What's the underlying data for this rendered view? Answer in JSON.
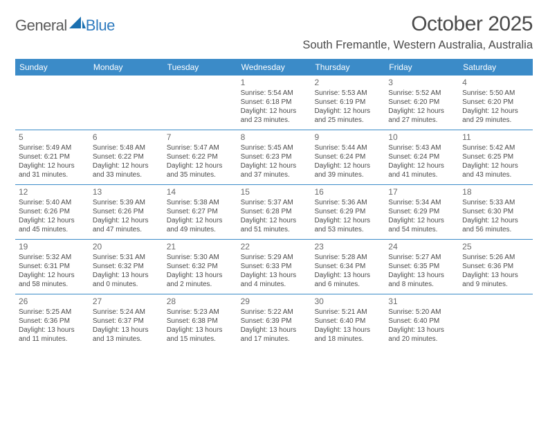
{
  "logo": {
    "general": "General",
    "blue": "Blue"
  },
  "title": "October 2025",
  "location": "South Fremantle, Western Australia, Australia",
  "colors": {
    "header_bg": "#3b8bc8",
    "header_text": "#ffffff",
    "page_bg": "#ffffff",
    "text": "#4a4a4a",
    "daynum": "#6a6a6a",
    "row_border": "#3b8bc8"
  },
  "typography": {
    "title_fontsize": 30,
    "location_fontsize": 16.5,
    "header_fontsize": 12,
    "daynum_fontsize": 12,
    "cell_fontsize": 10,
    "logo_fontsize": 22
  },
  "layout": {
    "columns": 7,
    "rows": 5,
    "cell_min_height": 78
  },
  "dayHeaders": [
    "Sunday",
    "Monday",
    "Tuesday",
    "Wednesday",
    "Thursday",
    "Friday",
    "Saturday"
  ],
  "weeks": [
    [
      {
        "day": "",
        "lines": []
      },
      {
        "day": "",
        "lines": []
      },
      {
        "day": "",
        "lines": []
      },
      {
        "day": "1",
        "lines": [
          "Sunrise: 5:54 AM",
          "Sunset: 6:18 PM",
          "Daylight: 12 hours",
          "and 23 minutes."
        ]
      },
      {
        "day": "2",
        "lines": [
          "Sunrise: 5:53 AM",
          "Sunset: 6:19 PM",
          "Daylight: 12 hours",
          "and 25 minutes."
        ]
      },
      {
        "day": "3",
        "lines": [
          "Sunrise: 5:52 AM",
          "Sunset: 6:20 PM",
          "Daylight: 12 hours",
          "and 27 minutes."
        ]
      },
      {
        "day": "4",
        "lines": [
          "Sunrise: 5:50 AM",
          "Sunset: 6:20 PM",
          "Daylight: 12 hours",
          "and 29 minutes."
        ]
      }
    ],
    [
      {
        "day": "5",
        "lines": [
          "Sunrise: 5:49 AM",
          "Sunset: 6:21 PM",
          "Daylight: 12 hours",
          "and 31 minutes."
        ]
      },
      {
        "day": "6",
        "lines": [
          "Sunrise: 5:48 AM",
          "Sunset: 6:22 PM",
          "Daylight: 12 hours",
          "and 33 minutes."
        ]
      },
      {
        "day": "7",
        "lines": [
          "Sunrise: 5:47 AM",
          "Sunset: 6:22 PM",
          "Daylight: 12 hours",
          "and 35 minutes."
        ]
      },
      {
        "day": "8",
        "lines": [
          "Sunrise: 5:45 AM",
          "Sunset: 6:23 PM",
          "Daylight: 12 hours",
          "and 37 minutes."
        ]
      },
      {
        "day": "9",
        "lines": [
          "Sunrise: 5:44 AM",
          "Sunset: 6:24 PM",
          "Daylight: 12 hours",
          "and 39 minutes."
        ]
      },
      {
        "day": "10",
        "lines": [
          "Sunrise: 5:43 AM",
          "Sunset: 6:24 PM",
          "Daylight: 12 hours",
          "and 41 minutes."
        ]
      },
      {
        "day": "11",
        "lines": [
          "Sunrise: 5:42 AM",
          "Sunset: 6:25 PM",
          "Daylight: 12 hours",
          "and 43 minutes."
        ]
      }
    ],
    [
      {
        "day": "12",
        "lines": [
          "Sunrise: 5:40 AM",
          "Sunset: 6:26 PM",
          "Daylight: 12 hours",
          "and 45 minutes."
        ]
      },
      {
        "day": "13",
        "lines": [
          "Sunrise: 5:39 AM",
          "Sunset: 6:26 PM",
          "Daylight: 12 hours",
          "and 47 minutes."
        ]
      },
      {
        "day": "14",
        "lines": [
          "Sunrise: 5:38 AM",
          "Sunset: 6:27 PM",
          "Daylight: 12 hours",
          "and 49 minutes."
        ]
      },
      {
        "day": "15",
        "lines": [
          "Sunrise: 5:37 AM",
          "Sunset: 6:28 PM",
          "Daylight: 12 hours",
          "and 51 minutes."
        ]
      },
      {
        "day": "16",
        "lines": [
          "Sunrise: 5:36 AM",
          "Sunset: 6:29 PM",
          "Daylight: 12 hours",
          "and 53 minutes."
        ]
      },
      {
        "day": "17",
        "lines": [
          "Sunrise: 5:34 AM",
          "Sunset: 6:29 PM",
          "Daylight: 12 hours",
          "and 54 minutes."
        ]
      },
      {
        "day": "18",
        "lines": [
          "Sunrise: 5:33 AM",
          "Sunset: 6:30 PM",
          "Daylight: 12 hours",
          "and 56 minutes."
        ]
      }
    ],
    [
      {
        "day": "19",
        "lines": [
          "Sunrise: 5:32 AM",
          "Sunset: 6:31 PM",
          "Daylight: 12 hours",
          "and 58 minutes."
        ]
      },
      {
        "day": "20",
        "lines": [
          "Sunrise: 5:31 AM",
          "Sunset: 6:32 PM",
          "Daylight: 13 hours",
          "and 0 minutes."
        ]
      },
      {
        "day": "21",
        "lines": [
          "Sunrise: 5:30 AM",
          "Sunset: 6:32 PM",
          "Daylight: 13 hours",
          "and 2 minutes."
        ]
      },
      {
        "day": "22",
        "lines": [
          "Sunrise: 5:29 AM",
          "Sunset: 6:33 PM",
          "Daylight: 13 hours",
          "and 4 minutes."
        ]
      },
      {
        "day": "23",
        "lines": [
          "Sunrise: 5:28 AM",
          "Sunset: 6:34 PM",
          "Daylight: 13 hours",
          "and 6 minutes."
        ]
      },
      {
        "day": "24",
        "lines": [
          "Sunrise: 5:27 AM",
          "Sunset: 6:35 PM",
          "Daylight: 13 hours",
          "and 8 minutes."
        ]
      },
      {
        "day": "25",
        "lines": [
          "Sunrise: 5:26 AM",
          "Sunset: 6:36 PM",
          "Daylight: 13 hours",
          "and 9 minutes."
        ]
      }
    ],
    [
      {
        "day": "26",
        "lines": [
          "Sunrise: 5:25 AM",
          "Sunset: 6:36 PM",
          "Daylight: 13 hours",
          "and 11 minutes."
        ]
      },
      {
        "day": "27",
        "lines": [
          "Sunrise: 5:24 AM",
          "Sunset: 6:37 PM",
          "Daylight: 13 hours",
          "and 13 minutes."
        ]
      },
      {
        "day": "28",
        "lines": [
          "Sunrise: 5:23 AM",
          "Sunset: 6:38 PM",
          "Daylight: 13 hours",
          "and 15 minutes."
        ]
      },
      {
        "day": "29",
        "lines": [
          "Sunrise: 5:22 AM",
          "Sunset: 6:39 PM",
          "Daylight: 13 hours",
          "and 17 minutes."
        ]
      },
      {
        "day": "30",
        "lines": [
          "Sunrise: 5:21 AM",
          "Sunset: 6:40 PM",
          "Daylight: 13 hours",
          "and 18 minutes."
        ]
      },
      {
        "day": "31",
        "lines": [
          "Sunrise: 5:20 AM",
          "Sunset: 6:40 PM",
          "Daylight: 13 hours",
          "and 20 minutes."
        ]
      },
      {
        "day": "",
        "lines": []
      }
    ]
  ]
}
